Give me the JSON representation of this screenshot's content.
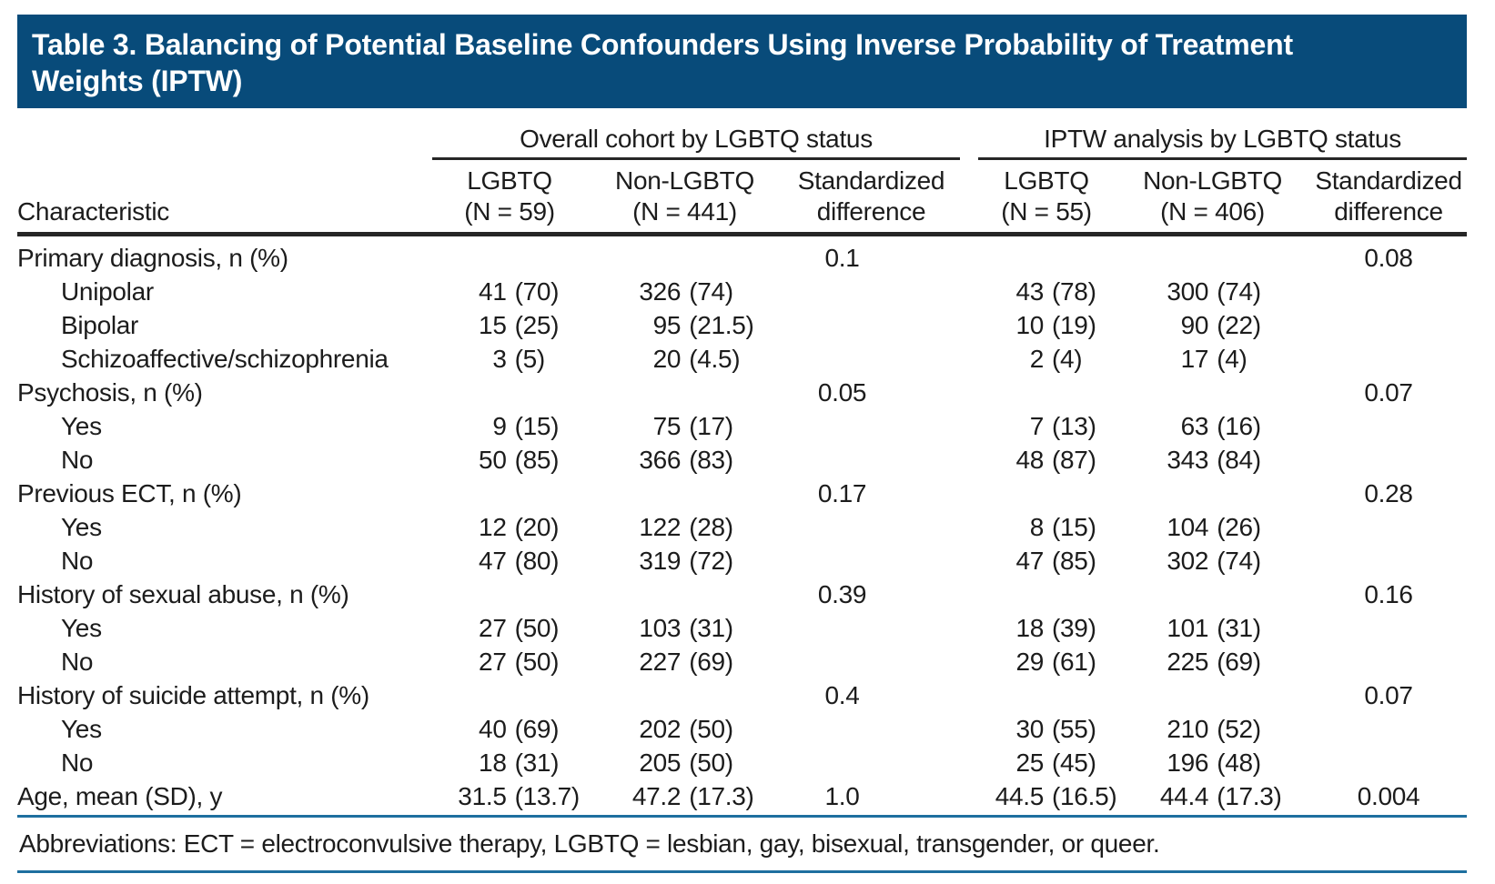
{
  "title": {
    "line1": "Table 3. Balancing of Potential Baseline Confounders Using Inverse Probability of Treatment",
    "line2": "Weights (IPTW)"
  },
  "colors": {
    "title_bar_bg": "#084B7A",
    "title_text": "#FFFFFF",
    "rule_blue": "#1E6F9F",
    "rule_black": "#262626",
    "body_text": "#1C1C1C"
  },
  "table": {
    "row_header": "Characteristic",
    "group_headers": [
      {
        "label": "Overall cohort by LGBTQ status"
      },
      {
        "label": "IPTW analysis by LGBTQ status"
      }
    ],
    "columns": [
      {
        "line1": "LGBTQ",
        "line2": "(N = 59)"
      },
      {
        "line1": "Non-LGBTQ",
        "line2": "(N = 441)"
      },
      {
        "line1": "Standardized",
        "line2": "difference"
      },
      {
        "line1": "LGBTQ",
        "line2": "(N = 55)"
      },
      {
        "line1": "Non-LGBTQ",
        "line2": "(N = 406)"
      },
      {
        "line1": "Standardized",
        "line2": "difference"
      }
    ],
    "rows": [
      {
        "label": "Primary diagnosis, n (%)",
        "indent": false,
        "cells": [
          "",
          "",
          "0.1",
          "",
          "",
          "0.08"
        ]
      },
      {
        "label": "Unipolar",
        "indent": true,
        "cells": [
          "41 (70)",
          "326 (74)",
          "",
          "43 (78)",
          "300 (74)",
          ""
        ]
      },
      {
        "label": "Bipolar",
        "indent": true,
        "cells": [
          "15 (25)",
          "95 (21.5)",
          "",
          "10 (19)",
          "90 (22)",
          ""
        ]
      },
      {
        "label": "Schizoaffective/schizophrenia",
        "indent": true,
        "cells": [
          "3 (5)",
          "20 (4.5)",
          "",
          "2 (4)",
          "17 (4)",
          ""
        ]
      },
      {
        "label": "Psychosis, n (%)",
        "indent": false,
        "cells": [
          "",
          "",
          "0.05",
          "",
          "",
          "0.07"
        ]
      },
      {
        "label": "Yes",
        "indent": true,
        "cells": [
          "9 (15)",
          "75 (17)",
          "",
          "7 (13)",
          "63 (16)",
          ""
        ]
      },
      {
        "label": "No",
        "indent": true,
        "cells": [
          "50 (85)",
          "366 (83)",
          "",
          "48 (87)",
          "343 (84)",
          ""
        ]
      },
      {
        "label": "Previous ECT, n (%)",
        "indent": false,
        "cells": [
          "",
          "",
          "0.17",
          "",
          "",
          "0.28"
        ]
      },
      {
        "label": "Yes",
        "indent": true,
        "cells": [
          "12 (20)",
          "122 (28)",
          "",
          "8 (15)",
          "104 (26)",
          ""
        ]
      },
      {
        "label": "No",
        "indent": true,
        "cells": [
          "47 (80)",
          "319 (72)",
          "",
          "47 (85)",
          "302 (74)",
          ""
        ]
      },
      {
        "label": "History of sexual abuse, n (%)",
        "indent": false,
        "cells": [
          "",
          "",
          "0.39",
          "",
          "",
          "0.16"
        ]
      },
      {
        "label": "Yes",
        "indent": true,
        "cells": [
          "27 (50)",
          "103 (31)",
          "",
          "18 (39)",
          "101 (31)",
          ""
        ]
      },
      {
        "label": "No",
        "indent": true,
        "cells": [
          "27 (50)",
          "227 (69)",
          "",
          "29 (61)",
          "225 (69)",
          ""
        ]
      },
      {
        "label": "History of suicide attempt, n (%)",
        "indent": false,
        "cells": [
          "",
          "",
          "0.4",
          "",
          "",
          "0.07"
        ]
      },
      {
        "label": "Yes",
        "indent": true,
        "cells": [
          "40 (69)",
          "202 (50)",
          "",
          "30 (55)",
          "210 (52)",
          ""
        ]
      },
      {
        "label": "No",
        "indent": true,
        "cells": [
          "18 (31)",
          "205 (50)",
          "",
          "25 (45)",
          "196 (48)",
          ""
        ]
      },
      {
        "label": "Age, mean (SD), y",
        "indent": false,
        "cells": [
          "31.5 (13.7)",
          "47.2 (17.3)",
          "1.0",
          "44.5 (16.5)",
          "44.4 (17.3)",
          "0.004"
        ]
      }
    ]
  },
  "footnote": "Abbreviations: ECT = electroconvulsive therapy, LGBTQ = lesbian, gay, bisexual, transgender, or queer."
}
